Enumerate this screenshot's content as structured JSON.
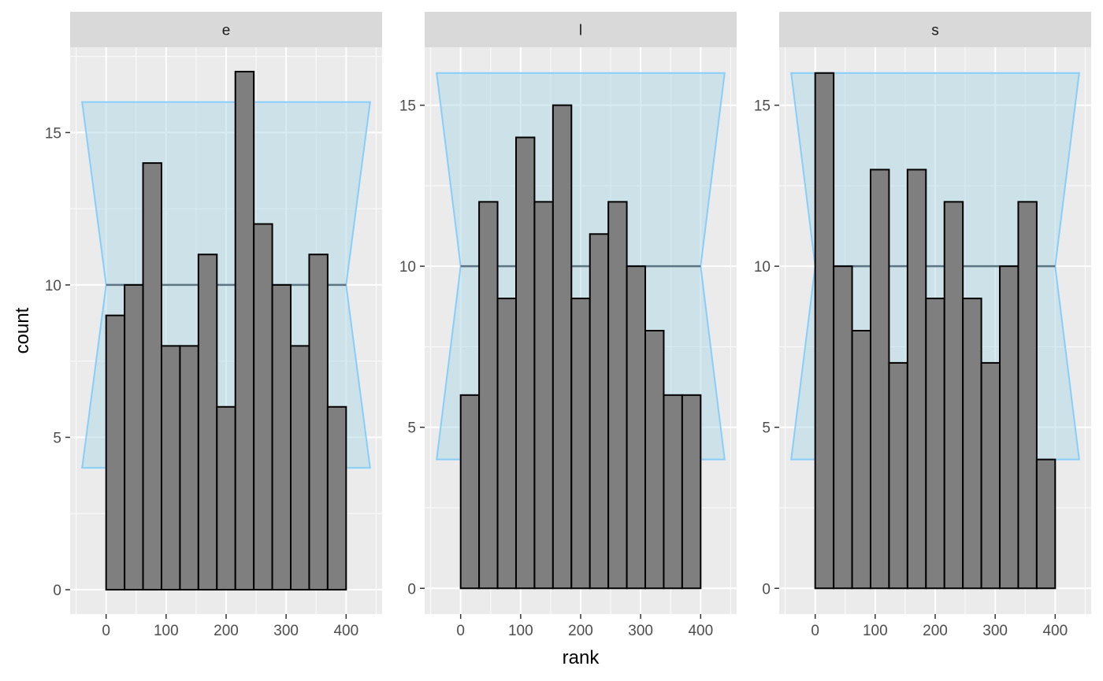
{
  "chart_data": {
    "type": "bar",
    "xlabel": "rank",
    "ylabel": "count",
    "x_ticks": [
      0,
      100,
      200,
      300,
      400
    ],
    "xlim": [
      -60,
      460
    ],
    "bin_width": 30.77,
    "bin_start": 0,
    "reference_count": 10,
    "facets": [
      {
        "label": "e",
        "y_ticks": [
          0,
          5,
          10,
          15
        ],
        "ylim": [
          -0.8,
          17.8
        ],
        "band": {
          "x_min": -40,
          "x_max": 440,
          "lower": 4,
          "upper": 16
        },
        "values": [
          9,
          10,
          14,
          8,
          8,
          11,
          6,
          17,
          12,
          10,
          8,
          11,
          6
        ]
      },
      {
        "label": "l",
        "y_ticks": [
          0,
          5,
          10,
          15
        ],
        "ylim": [
          -0.8,
          16.8
        ],
        "band": {
          "x_min": -40,
          "x_max": 440,
          "lower": 4,
          "upper": 16
        },
        "values": [
          6,
          12,
          9,
          14,
          12,
          15,
          9,
          11,
          12,
          10,
          8,
          6,
          6
        ]
      },
      {
        "label": "s",
        "y_ticks": [
          0,
          5,
          10,
          15
        ],
        "ylim": [
          -0.8,
          16.8
        ],
        "band": {
          "x_min": -40,
          "x_max": 440,
          "lower": 4,
          "upper": 16
        },
        "values": [
          16,
          10,
          8,
          13,
          7,
          13,
          9,
          12,
          9,
          7,
          10,
          12,
          4
        ]
      }
    ]
  }
}
